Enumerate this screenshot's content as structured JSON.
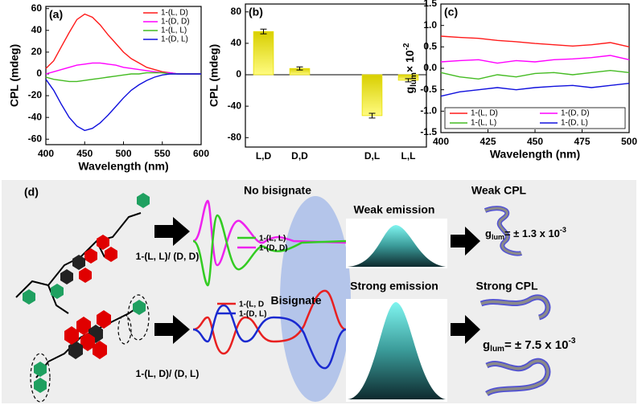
{
  "chart_data": [
    {
      "type": "line",
      "title": "(a)",
      "xlabel": "Wavelength (nm)",
      "ylabel": "CPL (mdeg)",
      "x": [
        400,
        410,
        420,
        430,
        440,
        450,
        460,
        470,
        480,
        490,
        500,
        510,
        520,
        530,
        540,
        550,
        560,
        570,
        580,
        590,
        600
      ],
      "xlim": [
        400,
        600
      ],
      "xticks": [
        400,
        450,
        500,
        550,
        600
      ],
      "ylim": [
        -65,
        62
      ],
      "yticks": [
        -60,
        -40,
        -20,
        0,
        20,
        40,
        60
      ],
      "legend": "upper right",
      "series": [
        {
          "name": "1-(L, D)",
          "color": "#ff1a1a",
          "values": [
            5,
            12,
            25,
            38,
            50,
            55,
            52,
            45,
            36,
            28,
            20,
            14,
            10,
            6,
            4,
            2,
            1,
            0,
            0,
            0,
            0
          ]
        },
        {
          "name": "1-(D, D)",
          "color": "#ff00ff",
          "values": [
            0,
            2,
            4,
            6,
            8,
            9,
            10,
            10,
            9,
            8,
            6,
            5,
            4,
            3,
            2,
            1,
            1,
            0,
            0,
            0,
            0
          ]
        },
        {
          "name": "1-(L, L)",
          "color": "#44bb22",
          "values": [
            -3,
            -5,
            -6,
            -7,
            -7,
            -6,
            -5,
            -4,
            -3,
            -2,
            -1,
            0,
            0,
            1,
            1,
            1,
            0,
            0,
            0,
            0,
            0
          ]
        },
        {
          "name": "1-(D, L)",
          "color": "#1010dd",
          "values": [
            -5,
            -15,
            -28,
            -40,
            -48,
            -52,
            -50,
            -45,
            -38,
            -30,
            -22,
            -15,
            -10,
            -6,
            -3,
            -1,
            0,
            0,
            0,
            0,
            0
          ]
        }
      ]
    },
    {
      "type": "bar",
      "title": "(b)",
      "ylabel": "CPL (mdeg)",
      "categories": [
        "L,D",
        "D,D",
        "D,L",
        "L,L"
      ],
      "values": [
        55,
        8,
        -52,
        -7
      ],
      "errors": [
        3,
        2,
        3,
        2
      ],
      "color": "#e8e000",
      "ylim": [
        -92,
        90
      ],
      "yticks": [
        -80,
        -40,
        0,
        40,
        80
      ]
    },
    {
      "type": "line",
      "title": "(c)",
      "xlabel": "Wavelength (nm)",
      "ylabel": {
        "base": "g",
        "sub": "lum",
        "mid": "× 10",
        "sup": "-2"
      },
      "x": [
        400,
        410,
        420,
        430,
        440,
        450,
        460,
        470,
        480,
        490,
        500
      ],
      "xlim": [
        400,
        500
      ],
      "xticks": [
        400,
        425,
        450,
        475,
        500
      ],
      "ylim": [
        -1.5,
        1.5
      ],
      "yticks": [
        {
          "value": -1.5,
          "label": "-1.5"
        },
        {
          "value": -1,
          "label": "-1.0"
        },
        {
          "value": -0.5,
          "label": "-0.5"
        },
        {
          "value": 0,
          "label": "0.0"
        },
        {
          "value": 0.5,
          "label": "0.5"
        },
        {
          "value": 1,
          "label": "1.0"
        },
        {
          "value": 1.5,
          "label": "1.5"
        }
      ],
      "legend": "lower center",
      "series": [
        {
          "name": "1-(L, D)",
          "color": "#ff1a1a",
          "values": [
            0.75,
            0.72,
            0.7,
            0.65,
            0.62,
            0.58,
            0.55,
            0.52,
            0.55,
            0.6,
            0.5
          ]
        },
        {
          "name": "1-(D, D)",
          "color": "#ff00ff",
          "values": [
            0.15,
            0.18,
            0.2,
            0.12,
            0.18,
            0.15,
            0.2,
            0.22,
            0.25,
            0.3,
            0.2
          ]
        },
        {
          "name": "1-(L, L)",
          "color": "#44bb22",
          "values": [
            -0.1,
            -0.2,
            -0.25,
            -0.15,
            -0.2,
            -0.12,
            -0.1,
            -0.15,
            -0.1,
            -0.05,
            -0.1
          ]
        },
        {
          "name": "1-(D, L)",
          "color": "#1010dd",
          "values": [
            -0.65,
            -0.55,
            -0.5,
            -0.45,
            -0.5,
            -0.45,
            -0.42,
            -0.4,
            -0.45,
            -0.4,
            -0.35
          ]
        }
      ]
    }
  ],
  "diagram": {
    "label": "(d)",
    "top": {
      "title": "No bisignate",
      "legend": [
        "1-(L, L)",
        "1-(D, D)"
      ],
      "sample": "1-(L, L)/ (D, D)",
      "emission": "Weak emission",
      "cpl": "Weak CPL",
      "glum": {
        "g": "g",
        "sub": "lum",
        "text": "= ± 1.3 x 10",
        "sup": "-3"
      }
    },
    "bottom": {
      "title": "Bisignate",
      "legend": [
        "1-(L, D",
        "1-(D, L)"
      ],
      "sample": "1-(L, D)/ (D, L)",
      "emission": "Strong emission",
      "cpl": "Strong CPL",
      "glum": {
        "g": "g",
        "sub": "lum",
        "text": "= ± 7.5 x 10",
        "sup": "-3"
      }
    }
  }
}
